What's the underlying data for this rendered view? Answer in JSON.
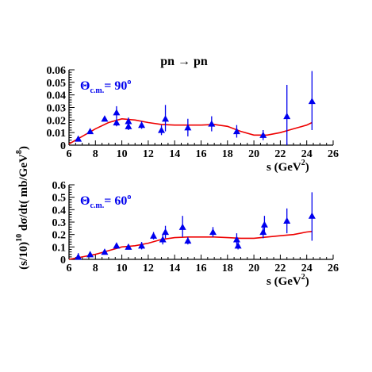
{
  "title": "pn → pn",
  "colors": {
    "data": "#0000ee",
    "curve": "#ee0000",
    "axis": "#000000",
    "title": "#ee0000",
    "annotation": "#0000ee"
  },
  "chart_data": [
    {
      "type": "scatter",
      "annotation": {
        "main": "Θ",
        "sub": "c.m.",
        "value": "= 90",
        "sup": "o"
      },
      "xlabel": "s",
      "xunit": "(GeV",
      "xunit_sup": "2",
      "xunit_close": ")",
      "xlim": [
        6,
        26
      ],
      "ylim": [
        0,
        0.06
      ],
      "xticks": [
        "6",
        "8",
        "10",
        "12",
        "14",
        "16",
        "18",
        "20",
        "22",
        "24",
        "26"
      ],
      "xtick_values": [
        6,
        8,
        10,
        12,
        14,
        16,
        18,
        20,
        22,
        24,
        26
      ],
      "yticks": [
        "0",
        "0.01",
        "0.02",
        "0.03",
        "0.04",
        "0.05",
        "0.06"
      ],
      "ytick_values": [
        0,
        0.01,
        0.02,
        0.03,
        0.04,
        0.05,
        0.06
      ],
      "series": [
        {
          "type": "scatter",
          "points": [
            {
              "x": 6.7,
              "y": 0.005,
              "lo": 0.003,
              "hi": 0.007
            },
            {
              "x": 7.6,
              "y": 0.011,
              "lo": 0.01,
              "hi": 0.012
            },
            {
              "x": 8.7,
              "y": 0.021,
              "lo": 0.019,
              "hi": 0.023
            },
            {
              "x": 9.6,
              "y": 0.026,
              "lo": 0.021,
              "hi": 0.031
            },
            {
              "x": 9.6,
              "y": 0.018,
              "lo": 0.015,
              "hi": 0.021
            },
            {
              "x": 10.5,
              "y": 0.019,
              "lo": 0.016,
              "hi": 0.022
            },
            {
              "x": 10.5,
              "y": 0.015,
              "lo": 0.012,
              "hi": 0.018
            },
            {
              "x": 11.5,
              "y": 0.016,
              "lo": 0.013,
              "hi": 0.019
            },
            {
              "x": 13.0,
              "y": 0.012,
              "lo": 0.008,
              "hi": 0.016
            },
            {
              "x": 13.3,
              "y": 0.021,
              "lo": 0.011,
              "hi": 0.032
            },
            {
              "x": 15.0,
              "y": 0.014,
              "lo": 0.007,
              "hi": 0.021
            },
            {
              "x": 16.8,
              "y": 0.017,
              "lo": 0.011,
              "hi": 0.023
            },
            {
              "x": 18.7,
              "y": 0.011,
              "lo": 0.006,
              "hi": 0.016
            },
            {
              "x": 20.7,
              "y": 0.008,
              "lo": 0.004,
              "hi": 0.012
            },
            {
              "x": 22.5,
              "y": 0.023,
              "lo": 0.0,
              "hi": 0.048
            },
            {
              "x": 24.4,
              "y": 0.035,
              "lo": 0.012,
              "hi": 0.059
            }
          ]
        },
        {
          "type": "line",
          "x": [
            6,
            7,
            8,
            9,
            10,
            11,
            12,
            13,
            14,
            15,
            16,
            17,
            18,
            19,
            20,
            21,
            22,
            23,
            24,
            24.4
          ],
          "y": [
            0.001,
            0.007,
            0.013,
            0.018,
            0.021,
            0.02,
            0.018,
            0.0165,
            0.016,
            0.016,
            0.016,
            0.0165,
            0.015,
            0.011,
            0.008,
            0.008,
            0.01,
            0.013,
            0.016,
            0.018
          ]
        }
      ]
    },
    {
      "type": "scatter",
      "annotation": {
        "main": "Θ",
        "sub": "c.m.",
        "value": "= 60",
        "sup": "o"
      },
      "xlabel": "s",
      "xunit": "(GeV",
      "xunit_sup": "2",
      "xunit_close": ")",
      "xlim": [
        6,
        26
      ],
      "ylim": [
        0,
        0.6
      ],
      "xticks": [
        "6",
        "8",
        "10",
        "12",
        "14",
        "16",
        "18",
        "20",
        "22",
        "24",
        "26"
      ],
      "xtick_values": [
        6,
        8,
        10,
        12,
        14,
        16,
        18,
        20,
        22,
        24,
        26
      ],
      "yticks": [
        "0",
        "0.1",
        "0.2",
        "0.3",
        "0.4",
        "0.5",
        "0.6"
      ],
      "ytick_values": [
        0,
        0.1,
        0.2,
        0.3,
        0.4,
        0.5,
        0.6
      ],
      "series": [
        {
          "type": "scatter",
          "points": [
            {
              "x": 6.7,
              "y": 0.02,
              "lo": 0.0,
              "hi": 0.05
            },
            {
              "x": 7.6,
              "y": 0.04,
              "lo": 0.03,
              "hi": 0.05
            },
            {
              "x": 8.7,
              "y": 0.06,
              "lo": 0.05,
              "hi": 0.07
            },
            {
              "x": 9.6,
              "y": 0.11,
              "lo": 0.09,
              "hi": 0.13
            },
            {
              "x": 10.5,
              "y": 0.1,
              "lo": 0.08,
              "hi": 0.12
            },
            {
              "x": 11.5,
              "y": 0.11,
              "lo": 0.08,
              "hi": 0.14
            },
            {
              "x": 12.4,
              "y": 0.19,
              "lo": 0.16,
              "hi": 0.22
            },
            {
              "x": 13.1,
              "y": 0.16,
              "lo": 0.12,
              "hi": 0.2
            },
            {
              "x": 13.3,
              "y": 0.22,
              "lo": 0.17,
              "hi": 0.27
            },
            {
              "x": 14.6,
              "y": 0.26,
              "lo": 0.18,
              "hi": 0.35
            },
            {
              "x": 15.0,
              "y": 0.15,
              "lo": 0.12,
              "hi": 0.18
            },
            {
              "x": 16.9,
              "y": 0.22,
              "lo": 0.18,
              "hi": 0.26
            },
            {
              "x": 18.7,
              "y": 0.16,
              "lo": 0.11,
              "hi": 0.21
            },
            {
              "x": 18.8,
              "y": 0.11,
              "lo": 0.08,
              "hi": 0.14
            },
            {
              "x": 20.7,
              "y": 0.22,
              "lo": 0.17,
              "hi": 0.27
            },
            {
              "x": 20.8,
              "y": 0.28,
              "lo": 0.21,
              "hi": 0.35
            },
            {
              "x": 22.5,
              "y": 0.31,
              "lo": 0.21,
              "hi": 0.41
            },
            {
              "x": 24.4,
              "y": 0.35,
              "lo": 0.15,
              "hi": 0.54
            }
          ]
        },
        {
          "type": "line",
          "x": [
            6,
            7,
            8,
            9,
            10,
            11,
            12,
            13,
            14,
            15,
            16,
            17,
            18,
            19,
            20,
            21,
            22,
            23,
            24,
            24.4
          ],
          "y": [
            0.0,
            0.02,
            0.04,
            0.07,
            0.1,
            0.11,
            0.13,
            0.16,
            0.175,
            0.18,
            0.18,
            0.18,
            0.175,
            0.17,
            0.17,
            0.18,
            0.19,
            0.2,
            0.22,
            0.225
          ]
        }
      ]
    }
  ],
  "ylabel": {
    "prefix": "(s/10)",
    "prefix_sup": "10",
    "body": " dσ/dt( mb/GeV",
    "body_sup": "8",
    "close": ")"
  }
}
